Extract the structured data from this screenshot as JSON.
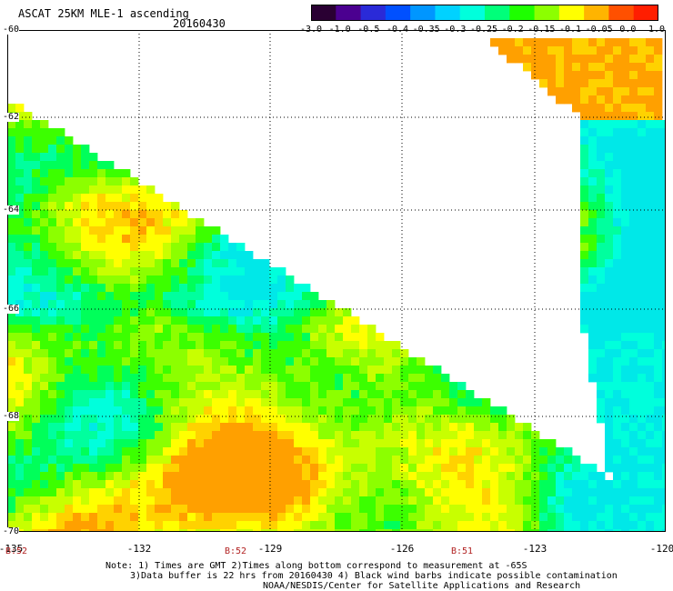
{
  "header": {
    "title": "ASCAT 25KM MLE-1 ascending",
    "date": "20160430"
  },
  "colorbar": {
    "labels": [
      "-3.0",
      "-1.0",
      "-0.5",
      "-0.4",
      "-0.35",
      "-0.3",
      "-0.25",
      "-0.2",
      "-0.15",
      "-0.1",
      "-0.05",
      "0.0",
      "1.0"
    ],
    "colors": [
      "#2a0033",
      "#4b0090",
      "#2a2ad8",
      "#0050ff",
      "#0096ff",
      "#00d2ff",
      "#00ffdc",
      "#00ff7a",
      "#1eff00",
      "#8cff00",
      "#ffff00",
      "#ffb400",
      "#ff5000",
      "#ff1e00"
    ]
  },
  "map": {
    "lat_labels": [
      "-60",
      "-62",
      "-64",
      "-66",
      "-68",
      "-70"
    ],
    "lon_labels": [
      "-135",
      "-132",
      "-129",
      "-126",
      "-123",
      "-120"
    ],
    "time_labels": [
      "B:52",
      "B:52",
      "B:51"
    ]
  },
  "notes": [
    "Note: 1) Times are GMT 2)Times along bottom correspond to measurement at -65S",
    "3)Data buffer is 22 hrs from 20160430 4) Black wind barbs indicate possible contamination",
    "NOAA/NESDIS/Center for Satellite Applications and Research"
  ]
}
